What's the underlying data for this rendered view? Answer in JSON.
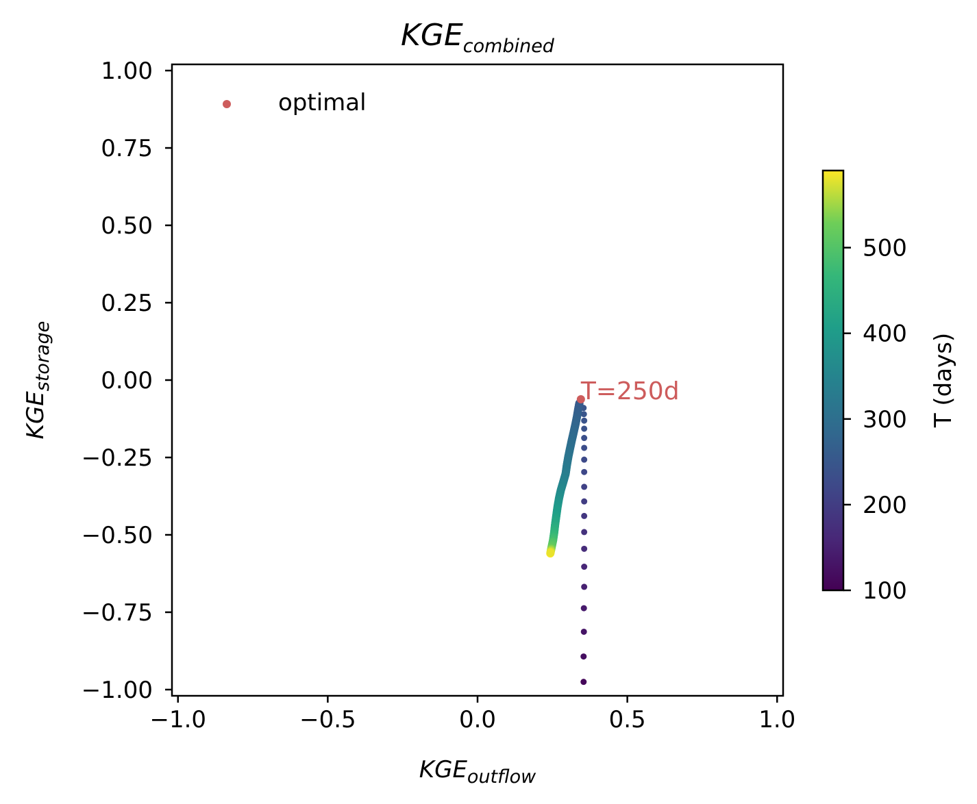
{
  "chart_data": {
    "type": "scatter",
    "title": {
      "base": "KGE",
      "sub": "combined"
    },
    "xlabel": {
      "base": "KGE",
      "sub": "outflow"
    },
    "ylabel": {
      "base": "KGE",
      "sub": "storage"
    },
    "xlim": [
      -1.02,
      1.02
    ],
    "ylim": [
      -1.02,
      1.02
    ],
    "x_ticks": [
      -1.0,
      -0.5,
      0.0,
      0.5,
      1.0
    ],
    "x_tick_labels": [
      "−1.0",
      "−0.5",
      "0.0",
      "0.5",
      "1.0"
    ],
    "y_ticks": [
      1.0,
      0.75,
      0.5,
      0.25,
      0.0,
      -0.25,
      -0.5,
      -0.75,
      -1.0
    ],
    "y_tick_labels": [
      "1.00",
      "0.75",
      "0.50",
      "0.25",
      "0.00",
      "−0.25",
      "−0.50",
      "−0.75",
      "−1.00"
    ],
    "grid": false,
    "legend": {
      "location": "upper-left",
      "entries": [
        {
          "label": "optimal",
          "color": "#cd5c5c"
        }
      ]
    },
    "colorbar": {
      "label": "T (days)",
      "range": [
        100,
        590
      ],
      "ticks": [
        100,
        200,
        300,
        400,
        500
      ],
      "tick_labels": [
        "100",
        "200",
        "300",
        "400",
        "500"
      ],
      "colormap": "viridis"
    },
    "annotation": {
      "text": "T=250d",
      "x": 0.345,
      "y": -0.062,
      "color": "#cd5c5c"
    },
    "optimal_point": {
      "x": 0.345,
      "y": -0.062,
      "T": 250,
      "color": "#cd5c5c"
    },
    "series": [
      {
        "points": [
          {
            "x": 0.354,
            "y": -0.975,
            "T": 110
          },
          {
            "x": 0.354,
            "y": -0.893,
            "T": 120
          },
          {
            "x": 0.355,
            "y": -0.813,
            "T": 130
          },
          {
            "x": 0.355,
            "y": -0.737,
            "T": 140
          },
          {
            "x": 0.356,
            "y": -0.668,
            "T": 150
          },
          {
            "x": 0.356,
            "y": -0.603,
            "T": 160
          },
          {
            "x": 0.356,
            "y": -0.545,
            "T": 170
          },
          {
            "x": 0.356,
            "y": -0.491,
            "T": 180
          },
          {
            "x": 0.356,
            "y": -0.439,
            "T": 190
          },
          {
            "x": 0.356,
            "y": -0.392,
            "T": 200
          },
          {
            "x": 0.356,
            "y": -0.345,
            "T": 210
          },
          {
            "x": 0.356,
            "y": -0.297,
            "T": 220
          },
          {
            "x": 0.356,
            "y": -0.257,
            "T": 225
          },
          {
            "x": 0.356,
            "y": -0.219,
            "T": 230
          },
          {
            "x": 0.356,
            "y": -0.187,
            "T": 235
          },
          {
            "x": 0.356,
            "y": -0.157,
            "T": 240
          },
          {
            "x": 0.356,
            "y": -0.131,
            "T": 243
          },
          {
            "x": 0.355,
            "y": -0.11,
            "T": 246
          },
          {
            "x": 0.354,
            "y": -0.09,
            "T": 248
          },
          {
            "x": 0.34,
            "y": -0.075,
            "T": 255
          },
          {
            "x": 0.336,
            "y": -0.095,
            "T": 262
          },
          {
            "x": 0.332,
            "y": -0.118,
            "T": 270
          },
          {
            "x": 0.327,
            "y": -0.142,
            "T": 278
          },
          {
            "x": 0.321,
            "y": -0.168,
            "T": 286
          },
          {
            "x": 0.315,
            "y": -0.193,
            "T": 294
          },
          {
            "x": 0.309,
            "y": -0.22,
            "T": 302
          },
          {
            "x": 0.303,
            "y": -0.248,
            "T": 312
          },
          {
            "x": 0.298,
            "y": -0.276,
            "T": 322
          },
          {
            "x": 0.294,
            "y": -0.303,
            "T": 332
          },
          {
            "x": 0.286,
            "y": -0.33,
            "T": 345
          },
          {
            "x": 0.278,
            "y": -0.356,
            "T": 360
          },
          {
            "x": 0.272,
            "y": -0.382,
            "T": 375
          },
          {
            "x": 0.267,
            "y": -0.41,
            "T": 392
          },
          {
            "x": 0.263,
            "y": -0.438,
            "T": 410
          },
          {
            "x": 0.259,
            "y": -0.466,
            "T": 430
          },
          {
            "x": 0.256,
            "y": -0.492,
            "T": 455
          },
          {
            "x": 0.252,
            "y": -0.518,
            "T": 485
          },
          {
            "x": 0.247,
            "y": -0.541,
            "T": 520
          },
          {
            "x": 0.243,
            "y": -0.56,
            "T": 590
          }
        ]
      }
    ]
  }
}
